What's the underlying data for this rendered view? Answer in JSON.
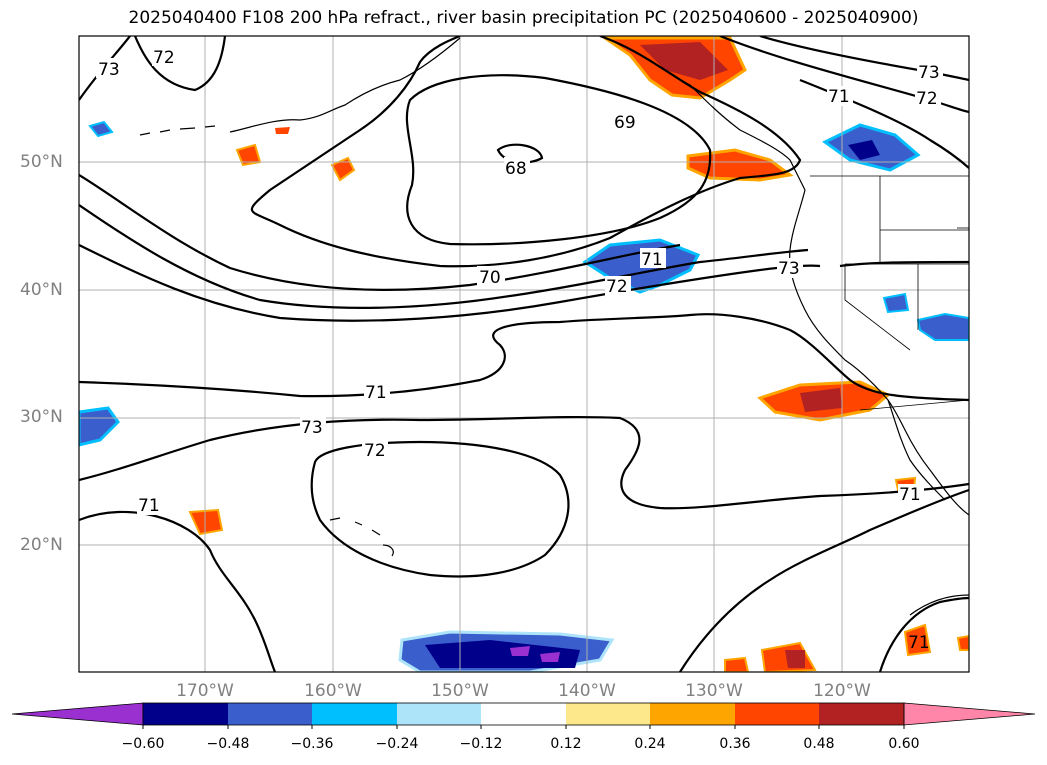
{
  "title": "2025040400 F108 200 hPa refract., river basin precipitation PC (2025040600 - 2025040900)",
  "map": {
    "lat_labels": [
      "50°N",
      "40°N",
      "30°N",
      "20°N"
    ],
    "lon_labels": [
      "170°W",
      "160°W",
      "150°W",
      "140°W",
      "130°W",
      "120°W"
    ],
    "contour_labels": [
      "73",
      "72",
      "69",
      "68",
      "70",
      "71",
      "72",
      "73",
      "71",
      "73",
      "72",
      "71",
      "71",
      "72",
      "71",
      "73",
      "71"
    ]
  },
  "colorbar": {
    "ticks": [
      "−0.60",
      "−0.48",
      "−0.36",
      "−0.24",
      "−0.12",
      "0.12",
      "0.24",
      "0.36",
      "0.48",
      "0.60"
    ],
    "colors": [
      "#9b30d0",
      "#00008b",
      "#3a5fcd",
      "#00bfff",
      "#aee4fa",
      "#ffffff",
      "#fde98c",
      "#ffa500",
      "#ff4500",
      "#b22222",
      "#ff86a8"
    ]
  }
}
